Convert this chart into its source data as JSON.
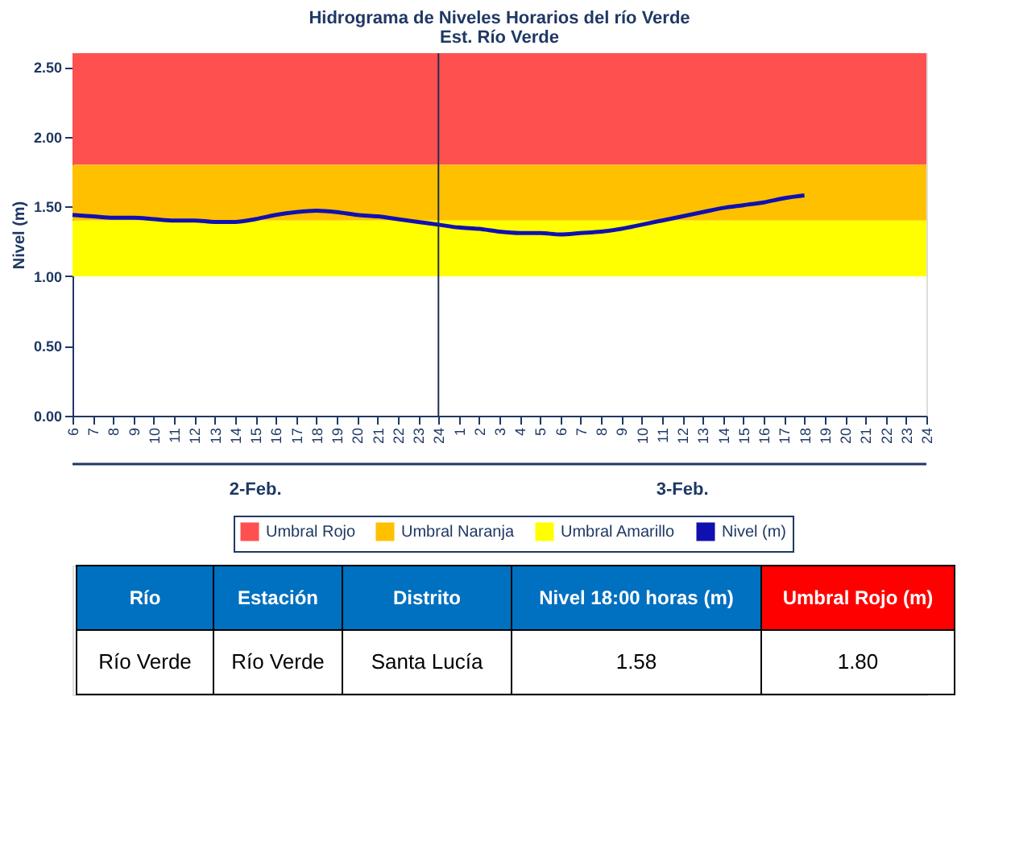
{
  "chart_data": {
    "type": "line",
    "title": "Hidrograma de Niveles Horarios del río Verde",
    "subtitle": "Est. Río Verde",
    "ylabel": "Nivel (m)",
    "categories": [
      "6",
      "7",
      "8",
      "9",
      "10",
      "11",
      "12",
      "13",
      "14",
      "15",
      "16",
      "17",
      "18",
      "19",
      "20",
      "21",
      "22",
      "23",
      "24",
      "1",
      "2",
      "3",
      "4",
      "5",
      "6",
      "7",
      "8",
      "9",
      "10",
      "11",
      "12",
      "13",
      "14",
      "15",
      "16",
      "17",
      "18",
      "19",
      "20",
      "21",
      "22",
      "23",
      "24"
    ],
    "series": [
      {
        "name": "Nivel (m)",
        "color": "#1010b0",
        "values": [
          1.44,
          1.43,
          1.42,
          1.42,
          1.41,
          1.4,
          1.4,
          1.39,
          1.39,
          1.41,
          1.44,
          1.46,
          1.47,
          1.46,
          1.44,
          1.43,
          1.41,
          1.39,
          1.37,
          1.35,
          1.34,
          1.32,
          1.31,
          1.31,
          1.3,
          1.31,
          1.32,
          1.34,
          1.37,
          1.4,
          1.43,
          1.46,
          1.49,
          1.51,
          1.53,
          1.56,
          1.58,
          null,
          null,
          null,
          null,
          null,
          null
        ]
      }
    ],
    "bands": [
      {
        "axis": "y",
        "from": 1.8,
        "to": 2.6,
        "label": "Umbral Rojo",
        "color": "#ff5050"
      },
      {
        "axis": "y",
        "from": 1.4,
        "to": 1.8,
        "label": "Umbral Naranja",
        "color": "#ffc000"
      },
      {
        "axis": "y",
        "from": 1.0,
        "to": 1.4,
        "label": "Umbral Amarillo",
        "color": "#ffff00"
      }
    ],
    "ref_lines": [
      {
        "axis": "x",
        "value": "24",
        "color": "#1f2d4d"
      }
    ],
    "ylim": [
      0,
      2.6
    ],
    "yticks": [
      {
        "value": 0,
        "label": "0.00"
      },
      {
        "value": 0.5,
        "label": "0.50"
      },
      {
        "value": 1,
        "label": "1.00"
      },
      {
        "value": 1.5,
        "label": "1.50"
      },
      {
        "value": 2,
        "label": "2.00"
      },
      {
        "value": 2.5,
        "label": "2.50"
      }
    ],
    "grid": false,
    "legend": "bottom",
    "marker": "none",
    "line_style": "solid",
    "annotations": [
      "2-Feb.",
      "3-Feb.",
      "Río",
      "Estación",
      "Distrito",
      "Nivel 18:00 horas (m)",
      "Umbral Rojo (m)",
      "Río Verde",
      "Río Verde",
      "Santa Lucía",
      "1.58",
      "1.80"
    ]
  }
}
